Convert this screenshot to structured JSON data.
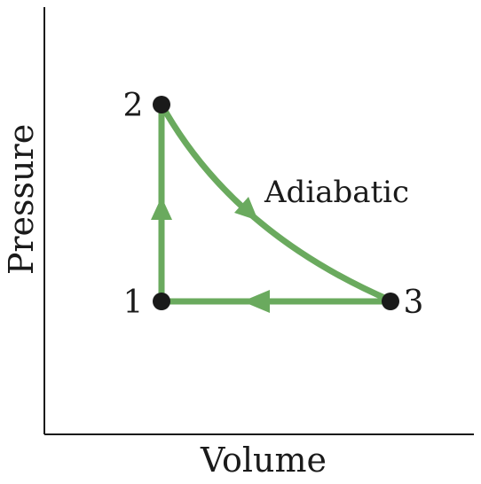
{
  "axes": {
    "x_label": "Volume",
    "y_label": "Pressure"
  },
  "points": [
    {
      "id": "1",
      "label": "1"
    },
    {
      "id": "2",
      "label": "2"
    },
    {
      "id": "3",
      "label": "3"
    }
  ],
  "processes": {
    "adiabatic_label": "Adiabatic"
  },
  "colors": {
    "path": "#6aaa5e",
    "axis": "#1a1a1a",
    "point": "#1a1a1a"
  }
}
